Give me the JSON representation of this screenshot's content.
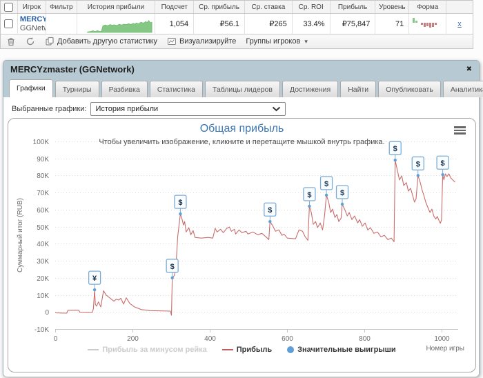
{
  "table": {
    "headers": [
      "",
      "Игрок",
      "Фильтр",
      "История прибыли",
      "Подсчет",
      "Ср. прибыль",
      "Ср. ставка",
      "Ср. ROI",
      "Прибыль",
      "Уровень",
      "Форма",
      ""
    ],
    "row": {
      "player_name": "MERCYzmaster",
      "player_site": "GGNetwork",
      "count": "1,054",
      "avg_profit": "₽56.1",
      "avg_stake": "₽265",
      "avg_roi": "33.4%",
      "profit": "₽75,847",
      "level": "71",
      "remove_label": "x",
      "sparkline_color": "#85c885",
      "sparkline": [
        [
          13,
          3
        ],
        [
          17,
          6
        ],
        [
          20,
          10
        ],
        [
          23,
          5
        ],
        [
          26,
          11
        ],
        [
          29,
          6
        ],
        [
          31,
          8
        ],
        [
          33,
          40
        ],
        [
          36,
          45
        ],
        [
          39,
          41
        ],
        [
          42,
          47
        ],
        [
          45,
          44
        ],
        [
          48,
          46
        ],
        [
          51,
          42
        ],
        [
          54,
          49
        ],
        [
          57,
          45
        ],
        [
          60,
          50
        ],
        [
          63,
          47
        ],
        [
          66,
          53
        ],
        [
          69,
          48
        ],
        [
          72,
          55
        ],
        [
          74,
          50
        ],
        [
          76,
          57
        ],
        [
          79,
          52
        ],
        [
          82,
          62
        ],
        [
          85,
          56
        ],
        [
          88,
          66
        ],
        [
          90,
          60
        ],
        [
          92,
          72
        ],
        [
          94,
          58
        ],
        [
          96,
          62
        ]
      ],
      "form": {
        "green_color": "#85c885",
        "red_color": "#c47f7f",
        "green_bars": [
          7,
          3
        ],
        "red_bars": [
          3,
          6,
          5,
          7,
          6,
          3
        ]
      }
    }
  },
  "toolbar": {
    "add_stat": "Добавить другую статистику",
    "visualize": "Визуализируйте",
    "groups": "Группы игроков",
    "groups_arrow": "▾"
  },
  "panel": {
    "title": "MERCYzmaster (GGNetwork)",
    "close_glyph": "✖",
    "tabs": [
      "Графики",
      "Турниры",
      "Разбивка",
      "Статистика",
      "Таблицы лидеров",
      "Достижения",
      "Найти",
      "Опубликовать",
      "Аналитика"
    ],
    "active_tab": "Графики",
    "selector_label": "Выбранные графики:",
    "selector_value": "История прибыли"
  },
  "chart_data": {
    "type": "line",
    "title": "Общая прибыль",
    "subtitle": "Чтобы увеличить изображение, кликните и перетащите мышкой внутрь графика.",
    "xlabel": "Номер игры",
    "ylabel": "Суммарный итог (RUB)",
    "values_unit": "thousands RUB",
    "xlim": [
      0,
      1043
    ],
    "ylim": [
      -10,
      100
    ],
    "x_ticks": [
      0,
      200,
      400,
      600,
      800,
      1000
    ],
    "y_ticks": [
      {
        "v": -10,
        "label": "-10K"
      },
      {
        "v": 0,
        "label": "0"
      },
      {
        "v": 10,
        "label": "10K"
      },
      {
        "v": 20,
        "label": "20K"
      },
      {
        "v": 30,
        "label": "30K"
      },
      {
        "v": 40,
        "label": "40K"
      },
      {
        "v": 50,
        "label": "50K"
      },
      {
        "v": 60,
        "label": "60K"
      },
      {
        "v": 70,
        "label": "70K"
      },
      {
        "v": 80,
        "label": "80K"
      },
      {
        "v": 90,
        "label": "90K"
      },
      {
        "v": 100,
        "label": "100K"
      }
    ],
    "grid": "dotted-horizontal",
    "legend_position": "bottom-center",
    "legend": [
      {
        "label": "Прибыль за минусом рейка",
        "color": "#cccccc",
        "type": "line",
        "disabled": true
      },
      {
        "label": "Прибыль",
        "color": "#c45c5c",
        "type": "line",
        "disabled": false
      },
      {
        "label": "Значительные выигрыши",
        "color": "#5f9fd6",
        "type": "marker",
        "disabled": false
      }
    ],
    "series": [
      {
        "name": "Прибыль",
        "color": "#c96c6c",
        "points": [
          [
            0,
            -0.5
          ],
          [
            14,
            -0.6
          ],
          [
            30,
            -0.7
          ],
          [
            33,
            1.0
          ],
          [
            61,
            1.0
          ],
          [
            64,
            -0.2
          ],
          [
            96,
            -0.3
          ],
          [
            99,
            2.0
          ],
          [
            102,
            13.0
          ],
          [
            104,
            4.5
          ],
          [
            107,
            3.4
          ],
          [
            112,
            5.9
          ],
          [
            118,
            3.0
          ],
          [
            125,
            12.4
          ],
          [
            132,
            9.9
          ],
          [
            141,
            8.3
          ],
          [
            152,
            6.3
          ],
          [
            158,
            7.5
          ],
          [
            164,
            7.0
          ],
          [
            170,
            8.0
          ],
          [
            177,
            4.6
          ],
          [
            184,
            8.3
          ],
          [
            193,
            5.0
          ],
          [
            205,
            3.0
          ],
          [
            223,
            1.4
          ],
          [
            245,
            0.8
          ],
          [
            298,
            0.5
          ],
          [
            301,
            -1.9
          ],
          [
            303,
            20.0
          ],
          [
            308,
            21.3
          ],
          [
            312,
            24.6
          ],
          [
            317,
            44.0
          ],
          [
            324,
            57.5
          ],
          [
            328,
            54.6
          ],
          [
            332,
            51.0
          ],
          [
            335,
            53.0
          ],
          [
            339,
            46.9
          ],
          [
            346,
            49.4
          ],
          [
            351,
            45.3
          ],
          [
            357,
            47.7
          ],
          [
            362,
            43.7
          ],
          [
            378,
            43.3
          ],
          [
            396,
            43.7
          ],
          [
            408,
            43.3
          ],
          [
            414,
            49.0
          ],
          [
            419,
            46.9
          ],
          [
            428,
            48.5
          ],
          [
            435,
            46.5
          ],
          [
            444,
            49.0
          ],
          [
            451,
            49.8
          ],
          [
            456,
            47.3
          ],
          [
            464,
            48.5
          ],
          [
            467,
            45.7
          ],
          [
            476,
            48.1
          ],
          [
            483,
            46.5
          ],
          [
            494,
            47.3
          ],
          [
            499,
            45.7
          ],
          [
            512,
            46.9
          ],
          [
            524,
            45.3
          ],
          [
            535,
            46.1
          ],
          [
            547,
            43.7
          ],
          [
            553,
            42.4
          ],
          [
            556,
            53.0
          ],
          [
            563,
            50.6
          ],
          [
            570,
            47.3
          ],
          [
            579,
            48.1
          ],
          [
            587,
            44.9
          ],
          [
            592,
            45.7
          ],
          [
            601,
            43.3
          ],
          [
            622,
            42.9
          ],
          [
            631,
            48.1
          ],
          [
            640,
            47.3
          ],
          [
            647,
            44.1
          ],
          [
            654,
            42.0
          ],
          [
            658,
            62.0
          ],
          [
            663,
            58.3
          ],
          [
            668,
            51.4
          ],
          [
            674,
            53.0
          ],
          [
            679,
            49.4
          ],
          [
            686,
            52.2
          ],
          [
            692,
            48.1
          ],
          [
            697,
            56.3
          ],
          [
            702,
            68.5
          ],
          [
            708,
            64.4
          ],
          [
            713,
            58.3
          ],
          [
            718,
            60.3
          ],
          [
            724,
            55.4
          ],
          [
            729,
            57.1
          ],
          [
            734,
            53.0
          ],
          [
            740,
            55.0
          ],
          [
            743,
            63.2
          ],
          [
            749,
            60.3
          ],
          [
            756,
            56.3
          ],
          [
            761,
            58.3
          ],
          [
            768,
            54.2
          ],
          [
            775,
            56.3
          ],
          [
            783,
            52.2
          ],
          [
            788,
            54.2
          ],
          [
            795,
            50.2
          ],
          [
            802,
            52.2
          ],
          [
            809,
            48.1
          ],
          [
            816,
            49.4
          ],
          [
            825,
            46.1
          ],
          [
            834,
            46.9
          ],
          [
            843,
            44.1
          ],
          [
            852,
            44.9
          ],
          [
            861,
            42.4
          ],
          [
            870,
            43.3
          ],
          [
            877,
            41.2
          ],
          [
            880,
            89.0
          ],
          [
            886,
            82.7
          ],
          [
            891,
            77.4
          ],
          [
            897,
            79.8
          ],
          [
            902,
            74.1
          ],
          [
            909,
            75.8
          ],
          [
            914,
            70.9
          ],
          [
            920,
            72.5
          ],
          [
            925,
            68.5
          ],
          [
            930,
            64.4
          ],
          [
            934,
            66.4
          ],
          [
            939,
            80.0
          ],
          [
            945,
            75.8
          ],
          [
            950,
            71.3
          ],
          [
            954,
            68.5
          ],
          [
            959,
            64.4
          ],
          [
            964,
            61.6
          ],
          [
            970,
            58.3
          ],
          [
            975,
            60.3
          ],
          [
            980,
            56.3
          ],
          [
            985,
            54.5
          ],
          [
            989,
            56.0
          ],
          [
            993,
            53.8
          ],
          [
            997,
            52.0
          ],
          [
            1000,
            54.0
          ],
          [
            1003,
            80.5
          ],
          [
            1006,
            77.5
          ],
          [
            1010,
            81.0
          ],
          [
            1014,
            79.4
          ],
          [
            1019,
            81.0
          ],
          [
            1024,
            78.5
          ],
          [
            1029,
            77.4
          ],
          [
            1035,
            76.1
          ]
        ]
      }
    ],
    "flags": [
      {
        "x": 102,
        "y": 13.0,
        "label": "¥"
      },
      {
        "x": 303,
        "y": 20.0,
        "label": "$"
      },
      {
        "x": 324,
        "y": 57.5,
        "label": "$"
      },
      {
        "x": 556,
        "y": 53.0,
        "label": "$"
      },
      {
        "x": 658,
        "y": 62.0,
        "label": "$"
      },
      {
        "x": 702,
        "y": 68.5,
        "label": "$"
      },
      {
        "x": 743,
        "y": 63.2,
        "label": "$"
      },
      {
        "x": 880,
        "y": 89.0,
        "label": "$"
      },
      {
        "x": 939,
        "y": 80.0,
        "label": "$"
      },
      {
        "x": 1003,
        "y": 80.5,
        "label": "$"
      }
    ],
    "flag_style": {
      "border": "#7cabd2",
      "fill": "#fafdff",
      "text": "#16324c",
      "anchor_dot": "#5f9fd6"
    }
  },
  "colors": {
    "panel_header_bg": "#b7c9d2",
    "title_blue": "#3b76b2",
    "grid_dotted": "#dcdcdc",
    "axis_line": "#c5c5c5",
    "axis_text": "#6b6b6b"
  }
}
